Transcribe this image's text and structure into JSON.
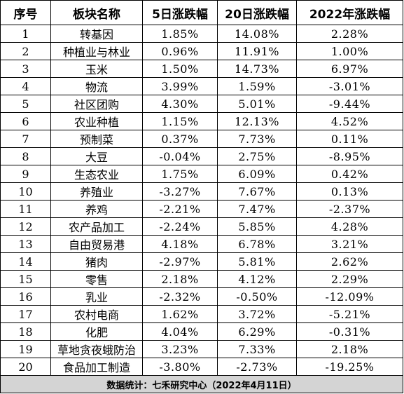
{
  "table": {
    "headers": [
      "序号",
      "板块名称",
      "5日涨跌幅",
      "20日涨跌幅",
      "2022年涨跌幅"
    ],
    "rows": [
      [
        "1",
        "转基因",
        "1.85%",
        "14.08%",
        "2.28%"
      ],
      [
        "2",
        "种植业与林业",
        "0.96%",
        "11.91%",
        "1.00%"
      ],
      [
        "3",
        "玉米",
        "1.50%",
        "14.73%",
        "6.97%"
      ],
      [
        "4",
        "物流",
        "3.99%",
        "1.59%",
        "-3.01%"
      ],
      [
        "5",
        "社区团购",
        "4.30%",
        "5.01%",
        "-9.44%"
      ],
      [
        "6",
        "农业种植",
        "1.15%",
        "12.13%",
        "4.52%"
      ],
      [
        "7",
        "预制菜",
        "0.37%",
        "7.73%",
        "0.11%"
      ],
      [
        "8",
        "大豆",
        "-0.04%",
        "2.75%",
        "-8.95%"
      ],
      [
        "9",
        "生态农业",
        "1.75%",
        "6.09%",
        "0.42%"
      ],
      [
        "10",
        "养殖业",
        "-3.27%",
        "7.67%",
        "0.13%"
      ],
      [
        "11",
        "养鸡",
        "-2.21%",
        "7.47%",
        "-2.37%"
      ],
      [
        "12",
        "农产品加工",
        "-2.24%",
        "5.85%",
        "4.28%"
      ],
      [
        "13",
        "自由贸易港",
        "4.18%",
        "6.78%",
        "3.21%"
      ],
      [
        "14",
        "猪肉",
        "-2.97%",
        "5.81%",
        "2.62%"
      ],
      [
        "15",
        "零售",
        "2.18%",
        "4.12%",
        "2.29%"
      ],
      [
        "16",
        "乳业",
        "-2.32%",
        "-0.50%",
        "-12.09%"
      ],
      [
        "17",
        "农村电商",
        "1.62%",
        "3.72%",
        "-5.21%"
      ],
      [
        "18",
        "化肥",
        "4.04%",
        "6.29%",
        "-0.31%"
      ],
      [
        "19",
        "草地贪夜蛾防治",
        "3.23%",
        "7.33%",
        "2.18%"
      ],
      [
        "20",
        "食品加工制造",
        "-3.80%",
        "-2.73%",
        "-19.25%"
      ]
    ],
    "footer": "数据统计：七禾研究中心（2022年4月11日）"
  },
  "colors": {
    "border": "#000000",
    "footer_background": "#d4d4d4",
    "text": "#000000"
  }
}
